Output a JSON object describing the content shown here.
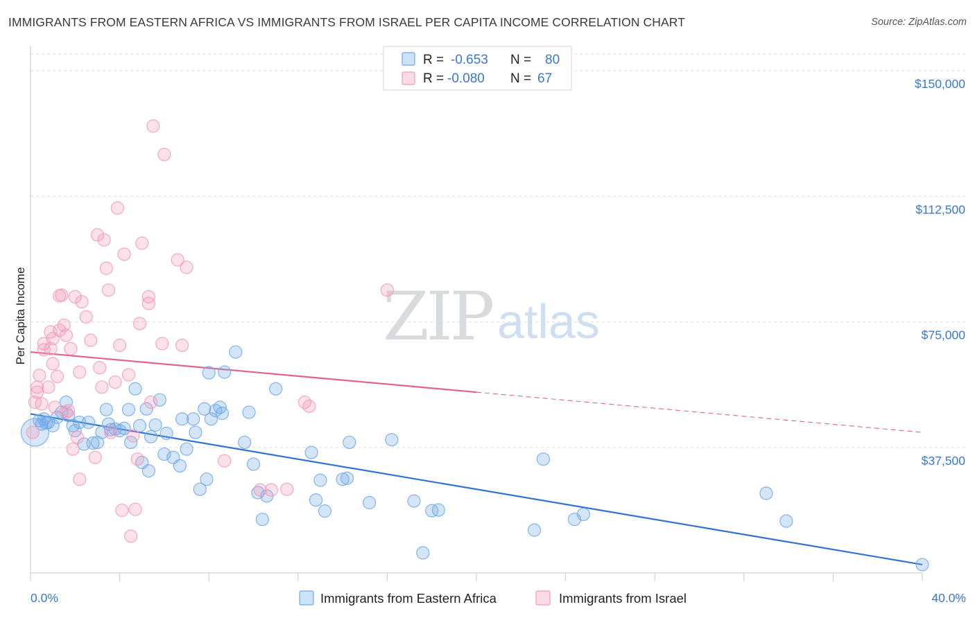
{
  "title": "IMMIGRANTS FROM EASTERN AFRICA VS IMMIGRANTS FROM ISRAEL PER CAPITA INCOME CORRELATION CHART",
  "source": "Source: ZipAtlas.com",
  "watermark": {
    "zip": "ZIP",
    "atlas": "atlas"
  },
  "stats_box": [
    {
      "r_label": "R =",
      "r_value": "-0.653",
      "n_label": "N =",
      "n_value": "80",
      "color": "#6fa8e8"
    },
    {
      "r_label": "R =",
      "r_value": "-0.080",
      "n_label": "N =",
      "n_value": "67",
      "color": "#f39ab8"
    }
  ],
  "chart_data": {
    "type": "scatter",
    "title": "IMMIGRANTS FROM EASTERN AFRICA VS IMMIGRANTS FROM ISRAEL PER CAPITA INCOME CORRELATION CHART",
    "xlabel": "",
    "ylabel": "Per Capita Income",
    "xlim": [
      0,
      40
    ],
    "ylim": [
      0,
      155000
    ],
    "x_tick_labels": [
      "0.0%",
      "40.0%"
    ],
    "y_ticks": [
      37500,
      75000,
      112500,
      150000
    ],
    "y_tick_labels": [
      "$37,500",
      "$75,000",
      "$112,500",
      "$150,000"
    ],
    "grid": true,
    "legend_position": "bottom",
    "series": [
      {
        "name": "Immigrants from Eastern Africa",
        "color": "#6fa8e8",
        "line_color": "#2f72cf",
        "trend": {
          "x": [
            0,
            40
          ],
          "y": [
            47500,
            2500
          ]
        },
        "points": [
          [
            0.2,
            42000
          ],
          [
            0.4,
            45500
          ],
          [
            0.5,
            44500
          ],
          [
            0.6,
            46000
          ],
          [
            0.7,
            44800
          ],
          [
            0.8,
            45000
          ],
          [
            1.0,
            44000
          ],
          [
            1.2,
            46500
          ],
          [
            1.4,
            48000
          ],
          [
            1.6,
            51000
          ],
          [
            1.7,
            47000
          ],
          [
            1.9,
            44000
          ],
          [
            2.0,
            42500
          ],
          [
            2.2,
            45000
          ],
          [
            2.4,
            38500
          ],
          [
            2.6,
            45000
          ],
          [
            2.8,
            38800
          ],
          [
            3.0,
            39000
          ],
          [
            3.2,
            42000
          ],
          [
            3.4,
            48800
          ],
          [
            3.5,
            44500
          ],
          [
            3.6,
            42800
          ],
          [
            3.8,
            43000
          ],
          [
            4.0,
            42500
          ],
          [
            4.2,
            43200
          ],
          [
            4.4,
            48800
          ],
          [
            4.5,
            39000
          ],
          [
            4.7,
            55000
          ],
          [
            4.9,
            44000
          ],
          [
            5.0,
            33000
          ],
          [
            5.2,
            49000
          ],
          [
            5.3,
            30500
          ],
          [
            5.4,
            40700
          ],
          [
            5.6,
            44200
          ],
          [
            5.8,
            51700
          ],
          [
            6.0,
            35500
          ],
          [
            6.1,
            41700
          ],
          [
            6.4,
            34500
          ],
          [
            6.7,
            32000
          ],
          [
            6.8,
            46000
          ],
          [
            7.0,
            37000
          ],
          [
            7.3,
            46000
          ],
          [
            7.4,
            42000
          ],
          [
            7.6,
            25000
          ],
          [
            7.8,
            49000
          ],
          [
            7.9,
            28000
          ],
          [
            8.0,
            59800
          ],
          [
            8.1,
            46000
          ],
          [
            8.3,
            48500
          ],
          [
            8.5,
            49500
          ],
          [
            8.6,
            47700
          ],
          [
            8.7,
            60000
          ],
          [
            9.2,
            66000
          ],
          [
            9.6,
            39000
          ],
          [
            9.8,
            48000
          ],
          [
            10.0,
            32500
          ],
          [
            10.2,
            24000
          ],
          [
            10.4,
            16000
          ],
          [
            10.6,
            23000
          ],
          [
            11.0,
            55000
          ],
          [
            12.6,
            36000
          ],
          [
            12.8,
            21800
          ],
          [
            13.0,
            27700
          ],
          [
            13.2,
            18500
          ],
          [
            14.0,
            28000
          ],
          [
            14.2,
            28300
          ],
          [
            14.3,
            39000
          ],
          [
            15.2,
            21000
          ],
          [
            16.2,
            39800
          ],
          [
            17.2,
            21500
          ],
          [
            17.6,
            6000
          ],
          [
            18.0,
            18600
          ],
          [
            18.3,
            18800
          ],
          [
            22.6,
            12800
          ],
          [
            23.0,
            34000
          ],
          [
            24.4,
            16000
          ],
          [
            24.8,
            17500
          ],
          [
            33.0,
            23800
          ],
          [
            33.9,
            15500
          ],
          [
            40.0,
            2500
          ]
        ]
      },
      {
        "name": "Immigrants from Israel",
        "color": "#f39ab8",
        "line_color": "#e2628e",
        "trend": {
          "x": [
            0,
            20,
            40
          ],
          "y": [
            66000,
            54000,
            42000
          ],
          "solid_until": 20
        },
        "points": [
          [
            0.1,
            42000
          ],
          [
            0.2,
            51000
          ],
          [
            0.3,
            54000
          ],
          [
            0.3,
            55500
          ],
          [
            0.4,
            59000
          ],
          [
            0.5,
            50500
          ],
          [
            0.6,
            66700
          ],
          [
            0.6,
            68500
          ],
          [
            0.8,
            55500
          ],
          [
            0.9,
            67000
          ],
          [
            0.9,
            72000
          ],
          [
            1.0,
            62500
          ],
          [
            1.0,
            70000
          ],
          [
            1.1,
            49500
          ],
          [
            1.2,
            58700
          ],
          [
            1.3,
            72500
          ],
          [
            1.3,
            82800
          ],
          [
            1.4,
            83000
          ],
          [
            1.5,
            74000
          ],
          [
            1.6,
            71000
          ],
          [
            1.6,
            48000
          ],
          [
            1.7,
            48500
          ],
          [
            1.8,
            67000
          ],
          [
            1.9,
            37000
          ],
          [
            2.0,
            82500
          ],
          [
            2.1,
            40500
          ],
          [
            2.2,
            60000
          ],
          [
            2.3,
            81000
          ],
          [
            2.5,
            76500
          ],
          [
            2.7,
            69500
          ],
          [
            2.9,
            34500
          ],
          [
            2.2,
            28000
          ],
          [
            3.0,
            101000
          ],
          [
            3.1,
            61300
          ],
          [
            3.2,
            55500
          ],
          [
            3.3,
            99500
          ],
          [
            3.4,
            91000
          ],
          [
            3.5,
            84500
          ],
          [
            3.6,
            42000
          ],
          [
            3.8,
            57000
          ],
          [
            3.9,
            109000
          ],
          [
            4.0,
            68000
          ],
          [
            4.1,
            18700
          ],
          [
            4.2,
            95200
          ],
          [
            4.4,
            59200
          ],
          [
            4.5,
            11000
          ],
          [
            4.6,
            41000
          ],
          [
            4.7,
            19000
          ],
          [
            4.8,
            34000
          ],
          [
            4.9,
            74500
          ],
          [
            5.0,
            98500
          ],
          [
            5.3,
            82500
          ],
          [
            5.3,
            80500
          ],
          [
            5.4,
            51000
          ],
          [
            5.5,
            133500
          ],
          [
            5.9,
            68500
          ],
          [
            6.0,
            125000
          ],
          [
            6.6,
            93500
          ],
          [
            6.8,
            68000
          ],
          [
            7.0,
            91300
          ],
          [
            8.7,
            33500
          ],
          [
            10.3,
            24800
          ],
          [
            10.8,
            24800
          ],
          [
            11.5,
            25000
          ],
          [
            12.3,
            51000
          ],
          [
            12.5,
            49800
          ],
          [
            16.0,
            84500
          ]
        ]
      }
    ]
  },
  "legend": [
    {
      "label": "Immigrants from Eastern Africa",
      "color": "#6fa8e8"
    },
    {
      "label": "Immigrants from Israel",
      "color": "#f39ab8"
    }
  ]
}
